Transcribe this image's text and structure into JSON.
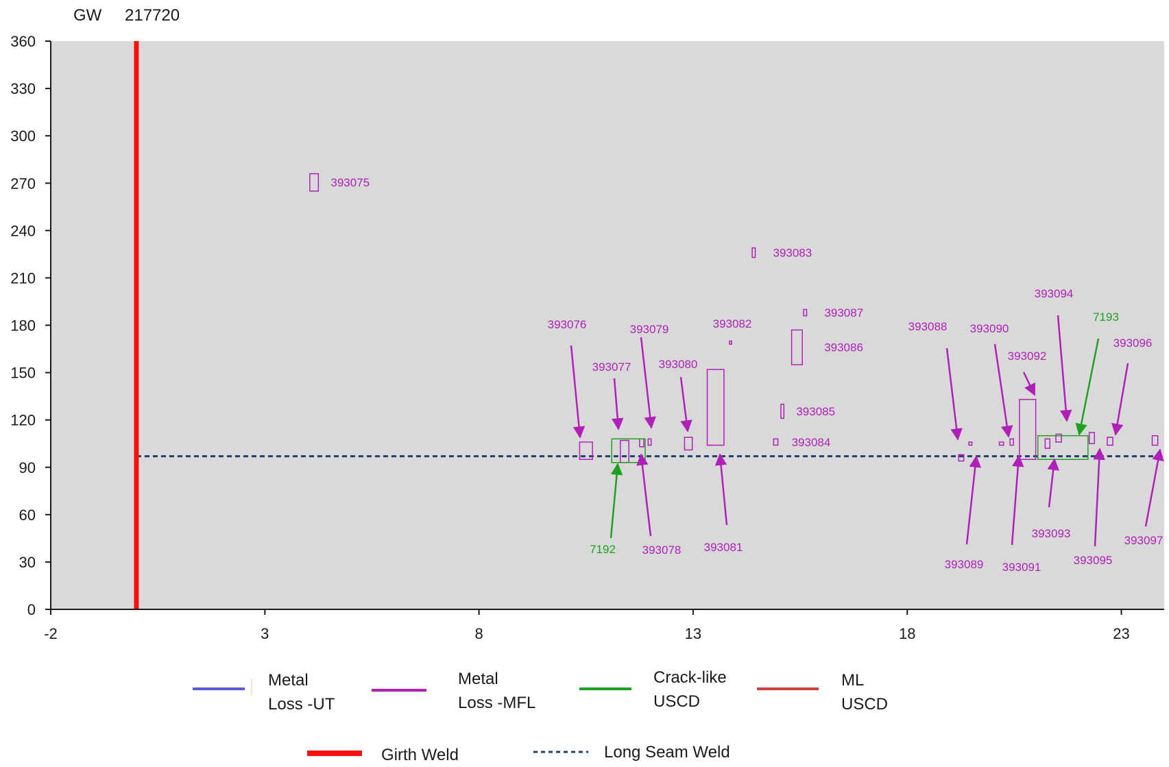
{
  "header": {
    "gw_label": "GW",
    "gw_number": "217720"
  },
  "colors": {
    "plot_bg": "#d9d9d9",
    "mfl": "#b020b8",
    "crack": "#20a020",
    "ut": "#5b5bd6",
    "ml_uscd": "#d04040",
    "girth_weld": "#ff1010",
    "seam_weld": "#1f3f6f",
    "axis": "#1a1a1a"
  },
  "legend": {
    "items": [
      {
        "label": "Metal\nLoss -UT",
        "style": "ut"
      },
      {
        "label": "Metal\nLoss -MFL",
        "style": "mfl"
      },
      {
        "label": "Crack-like\nUSCD",
        "style": "crack"
      },
      {
        "label": "ML\nUSCD",
        "style": "ml_uscd"
      },
      {
        "label": "Girth Weld",
        "style": "girth_weld"
      },
      {
        "label": "Long Seam Weld",
        "style": "seam_weld"
      }
    ]
  },
  "chart_data": {
    "type": "scatter",
    "xlim": [
      -2,
      24
    ],
    "ylim": [
      0,
      360
    ],
    "x_ticks": [
      -2,
      3,
      8,
      13,
      18,
      23
    ],
    "y_ticks": [
      0,
      30,
      60,
      90,
      120,
      150,
      180,
      210,
      240,
      270,
      300,
      330,
      360
    ],
    "grid": false,
    "girth_weld_x": 0,
    "long_seam_y": 97,
    "features": [
      {
        "label": "393075",
        "kind": "mfl",
        "x0": 4.05,
        "x1": 4.25,
        "y0": 265,
        "y1": 276
      },
      {
        "label": "393076",
        "kind": "mfl",
        "x0": 10.35,
        "x1": 10.65,
        "y0": 95,
        "y1": 106
      },
      {
        "label": "393077",
        "kind": "mfl",
        "x0": 11.3,
        "x1": 11.5,
        "y0": 93,
        "y1": 107
      },
      {
        "label": "393078",
        "kind": "mfl",
        "x0": 11.75,
        "x1": 11.85,
        "y0": 103,
        "y1": 108
      },
      {
        "label": "393079",
        "kind": "mfl",
        "x0": 11.95,
        "x1": 12.02,
        "y0": 104,
        "y1": 108
      },
      {
        "label": "393080",
        "kind": "mfl",
        "x0": 12.8,
        "x1": 12.98,
        "y0": 101,
        "y1": 109
      },
      {
        "label": "393081",
        "kind": "mfl",
        "x0": 13.33,
        "x1": 13.72,
        "y0": 104,
        "y1": 152
      },
      {
        "label": "393082",
        "kind": "mfl",
        "x0": 13.85,
        "x1": 13.9,
        "y0": 168,
        "y1": 170
      },
      {
        "label": "393083",
        "kind": "mfl",
        "x0": 14.38,
        "x1": 14.45,
        "y0": 223,
        "y1": 229
      },
      {
        "label": "393084",
        "kind": "mfl",
        "x0": 14.88,
        "x1": 14.98,
        "y0": 104,
        "y1": 108
      },
      {
        "label": "393085",
        "kind": "mfl",
        "x0": 15.05,
        "x1": 15.12,
        "y0": 121,
        "y1": 130
      },
      {
        "label": "393086",
        "kind": "mfl",
        "x0": 15.3,
        "x1": 15.55,
        "y0": 155,
        "y1": 177
      },
      {
        "label": "393087",
        "kind": "mfl",
        "x0": 15.58,
        "x1": 15.65,
        "y0": 186,
        "y1": 190
      },
      {
        "label": "393088",
        "kind": "mfl",
        "x0": 19.2,
        "x1": 19.32,
        "y0": 94,
        "y1": 98
      },
      {
        "label": "393089",
        "kind": "mfl",
        "x0": 19.44,
        "x1": 19.51,
        "y0": 104,
        "y1": 106
      },
      {
        "label": "393090",
        "kind": "mfl",
        "x0": 20.15,
        "x1": 20.25,
        "y0": 104,
        "y1": 106
      },
      {
        "label": "393091",
        "kind": "mfl",
        "x0": 20.4,
        "x1": 20.48,
        "y0": 104,
        "y1": 108
      },
      {
        "label": "393092",
        "kind": "mfl",
        "x0": 20.62,
        "x1": 21.0,
        "y0": 95,
        "y1": 133
      },
      {
        "label": "393093",
        "kind": "mfl",
        "x0": 21.22,
        "x1": 21.33,
        "y0": 102,
        "y1": 108
      },
      {
        "label": "393094",
        "kind": "mfl",
        "x0": 21.47,
        "x1": 21.6,
        "y0": 106,
        "y1": 111
      },
      {
        "label": "393095",
        "kind": "mfl",
        "x0": 22.25,
        "x1": 22.37,
        "y0": 105,
        "y1": 112
      },
      {
        "label": "393096",
        "kind": "mfl",
        "x0": 22.67,
        "x1": 22.8,
        "y0": 104,
        "y1": 109
      },
      {
        "label": "393097",
        "kind": "mfl",
        "x0": 23.72,
        "x1": 23.85,
        "y0": 104,
        "y1": 110
      },
      {
        "label": "7192",
        "kind": "crack",
        "x0": 11.1,
        "x1": 11.88,
        "y0": 93,
        "y1": 108
      },
      {
        "label": "7193",
        "kind": "crack",
        "x0": 21.05,
        "x1": 22.22,
        "y0": 95,
        "y1": 110
      }
    ]
  }
}
